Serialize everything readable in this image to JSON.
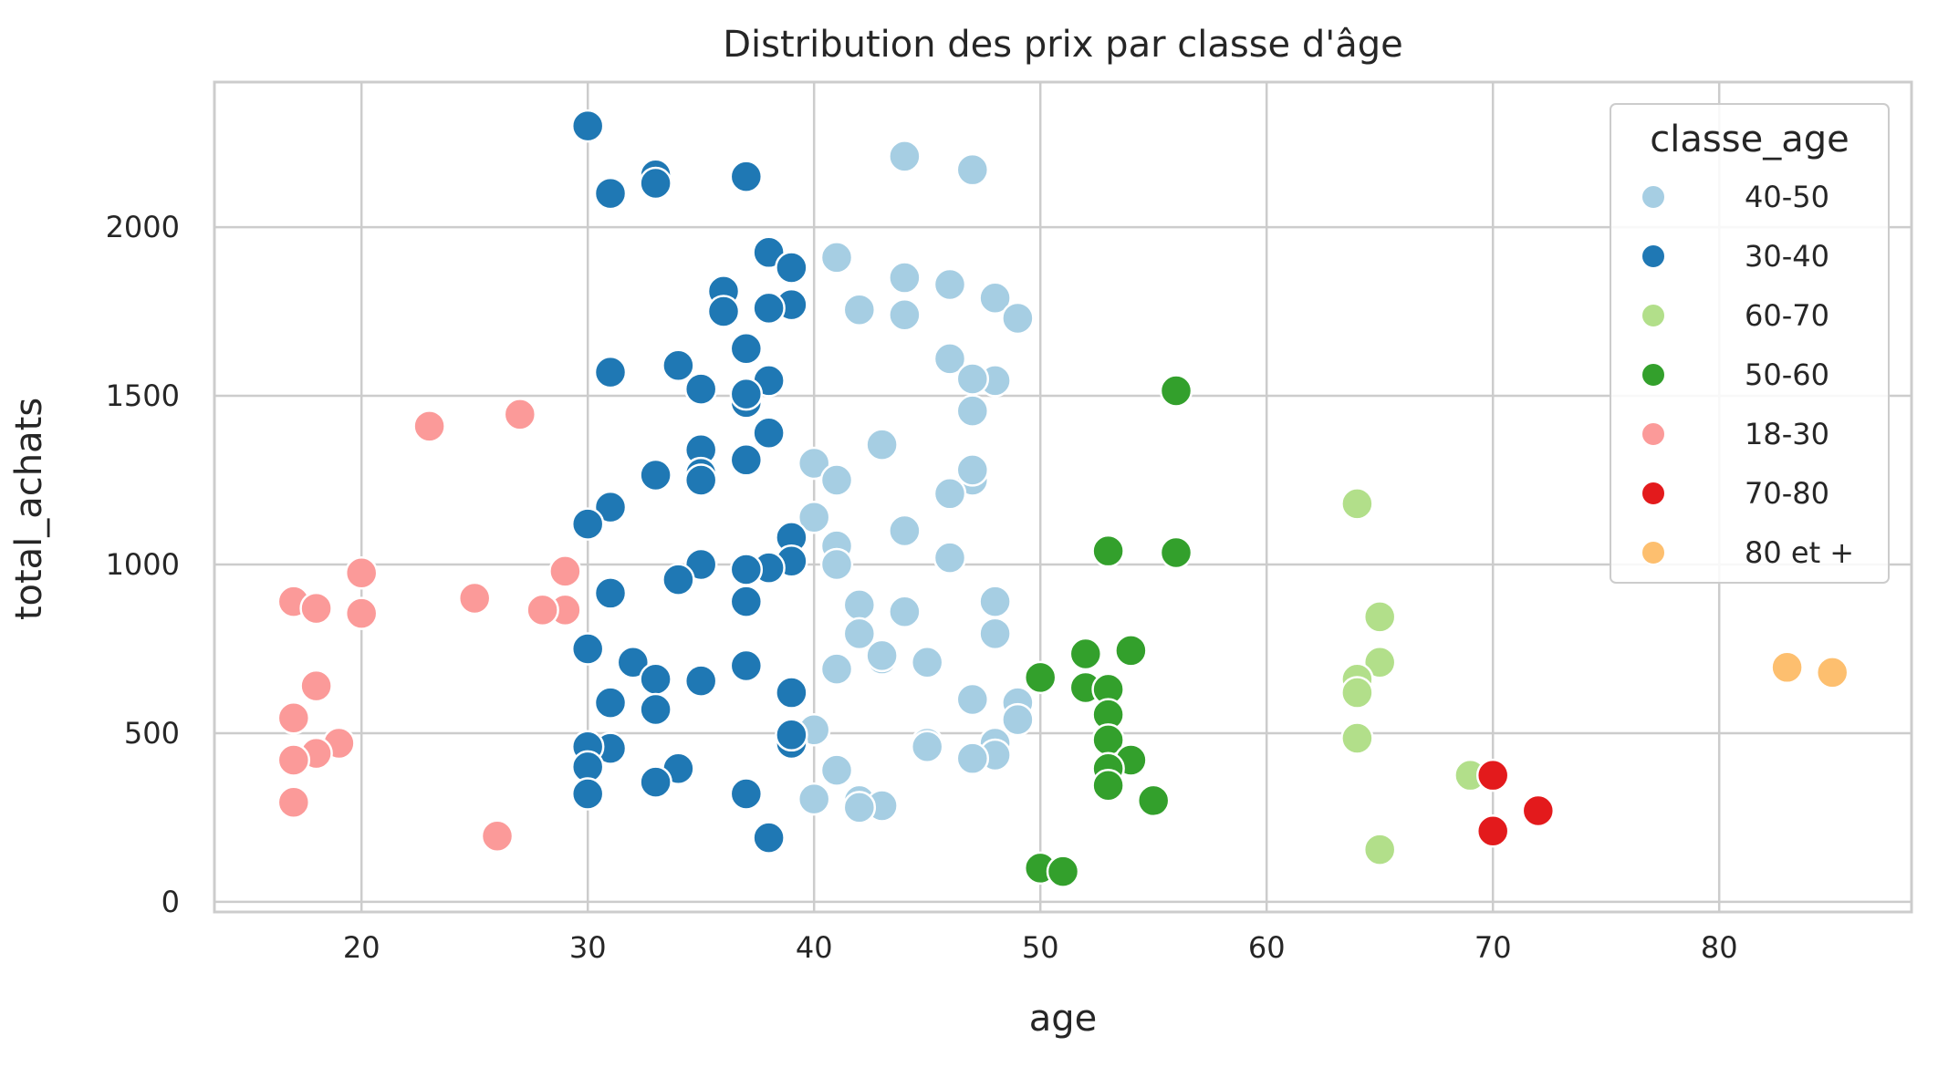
{
  "chart_data": {
    "type": "scatter",
    "title": "Distribution des prix par classe d'âge",
    "xlabel": "age",
    "ylabel": "total_achats",
    "xlim": [
      13.5,
      88.5
    ],
    "ylim": [
      -30,
      2430
    ],
    "xticks": [
      20,
      30,
      40,
      50,
      60,
      70,
      80
    ],
    "yticks": [
      0,
      500,
      1000,
      1500,
      2000
    ],
    "grid": true,
    "legend": {
      "title": "classe_age",
      "placement": "top-right"
    },
    "series": [
      {
        "name": "40-50",
        "color": "#a6cee3",
        "points": [
          [
            44,
            2210
          ],
          [
            47,
            2170
          ],
          [
            41,
            1910
          ],
          [
            44,
            1850
          ],
          [
            46,
            1830
          ],
          [
            48,
            1790
          ],
          [
            42,
            1755
          ],
          [
            44,
            1740
          ],
          [
            49,
            1730
          ],
          [
            46,
            1610
          ],
          [
            48,
            1545
          ],
          [
            47,
            1550
          ],
          [
            47,
            1455
          ],
          [
            43,
            1355
          ],
          [
            40,
            1300
          ],
          [
            41,
            1250
          ],
          [
            47,
            1250
          ],
          [
            46,
            1210
          ],
          [
            47,
            1280
          ],
          [
            40,
            1140
          ],
          [
            44,
            1100
          ],
          [
            41,
            1055
          ],
          [
            46,
            1020
          ],
          [
            41,
            1000
          ],
          [
            48,
            890
          ],
          [
            42,
            880
          ],
          [
            44,
            860
          ],
          [
            42,
            795
          ],
          [
            48,
            795
          ],
          [
            43,
            720
          ],
          [
            45,
            710
          ],
          [
            43,
            730
          ],
          [
            41,
            690
          ],
          [
            47,
            600
          ],
          [
            49,
            590
          ],
          [
            49,
            540
          ],
          [
            40,
            510
          ],
          [
            45,
            470
          ],
          [
            45,
            460
          ],
          [
            48,
            470
          ],
          [
            48,
            435
          ],
          [
            47,
            425
          ],
          [
            41,
            390
          ],
          [
            40,
            305
          ],
          [
            42,
            300
          ],
          [
            43,
            285
          ],
          [
            42,
            280
          ]
        ]
      },
      {
        "name": "30-40",
        "color": "#1f78b4",
        "points": [
          [
            30,
            2300
          ],
          [
            33,
            2155
          ],
          [
            37,
            2150
          ],
          [
            33,
            2130
          ],
          [
            31,
            2100
          ],
          [
            38,
            1925
          ],
          [
            39,
            1880
          ],
          [
            36,
            1810
          ],
          [
            39,
            1770
          ],
          [
            38,
            1760
          ],
          [
            36,
            1750
          ],
          [
            37,
            1640
          ],
          [
            34,
            1590
          ],
          [
            31,
            1570
          ],
          [
            38,
            1545
          ],
          [
            35,
            1520
          ],
          [
            37,
            1480
          ],
          [
            37,
            1505
          ],
          [
            38,
            1390
          ],
          [
            35,
            1340
          ],
          [
            37,
            1310
          ],
          [
            35,
            1270
          ],
          [
            33,
            1265
          ],
          [
            35,
            1250
          ],
          [
            31,
            1170
          ],
          [
            30,
            1120
          ],
          [
            39,
            1080
          ],
          [
            39,
            1010
          ],
          [
            35,
            1000
          ],
          [
            38,
            990
          ],
          [
            37,
            985
          ],
          [
            34,
            955
          ],
          [
            31,
            915
          ],
          [
            37,
            890
          ],
          [
            30,
            750
          ],
          [
            32,
            710
          ],
          [
            37,
            700
          ],
          [
            33,
            660
          ],
          [
            35,
            655
          ],
          [
            39,
            620
          ],
          [
            31,
            590
          ],
          [
            33,
            570
          ],
          [
            39,
            470
          ],
          [
            39,
            495
          ],
          [
            31,
            455
          ],
          [
            30,
            460
          ],
          [
            30,
            400
          ],
          [
            34,
            395
          ],
          [
            33,
            355
          ],
          [
            30,
            320
          ],
          [
            37,
            320
          ],
          [
            38,
            190
          ]
        ]
      },
      {
        "name": "60-70",
        "color": "#b2df8a",
        "points": [
          [
            64,
            1180
          ],
          [
            65,
            845
          ],
          [
            65,
            710
          ],
          [
            64,
            660
          ],
          [
            64,
            620
          ],
          [
            64,
            485
          ],
          [
            69,
            375
          ],
          [
            65,
            155
          ]
        ]
      },
      {
        "name": "50-60",
        "color": "#33a02c",
        "points": [
          [
            56,
            1515
          ],
          [
            53,
            1040
          ],
          [
            56,
            1035
          ],
          [
            54,
            745
          ],
          [
            52,
            735
          ],
          [
            50,
            665
          ],
          [
            52,
            635
          ],
          [
            53,
            630
          ],
          [
            53,
            555
          ],
          [
            53,
            480
          ],
          [
            54,
            420
          ],
          [
            53,
            395
          ],
          [
            53,
            345
          ],
          [
            55,
            300
          ],
          [
            50,
            100
          ],
          [
            51,
            90
          ]
        ]
      },
      {
        "name": "18-30",
        "color": "#fb9a99",
        "points": [
          [
            27,
            1445
          ],
          [
            23,
            1410
          ],
          [
            29,
            980
          ],
          [
            20,
            975
          ],
          [
            25,
            900
          ],
          [
            17,
            890
          ],
          [
            18,
            870
          ],
          [
            29,
            865
          ],
          [
            28,
            865
          ],
          [
            20,
            855
          ],
          [
            18,
            640
          ],
          [
            17,
            545
          ],
          [
            19,
            470
          ],
          [
            18,
            440
          ],
          [
            17,
            420
          ],
          [
            17,
            295
          ],
          [
            26,
            195
          ]
        ]
      },
      {
        "name": "70-80",
        "color": "#e31a1c",
        "points": [
          [
            70,
            375
          ],
          [
            72,
            270
          ],
          [
            70,
            210
          ]
        ]
      },
      {
        "name": "80 et +",
        "color": "#fdbf6f",
        "points": [
          [
            83,
            695
          ],
          [
            85,
            680
          ]
        ]
      }
    ]
  }
}
